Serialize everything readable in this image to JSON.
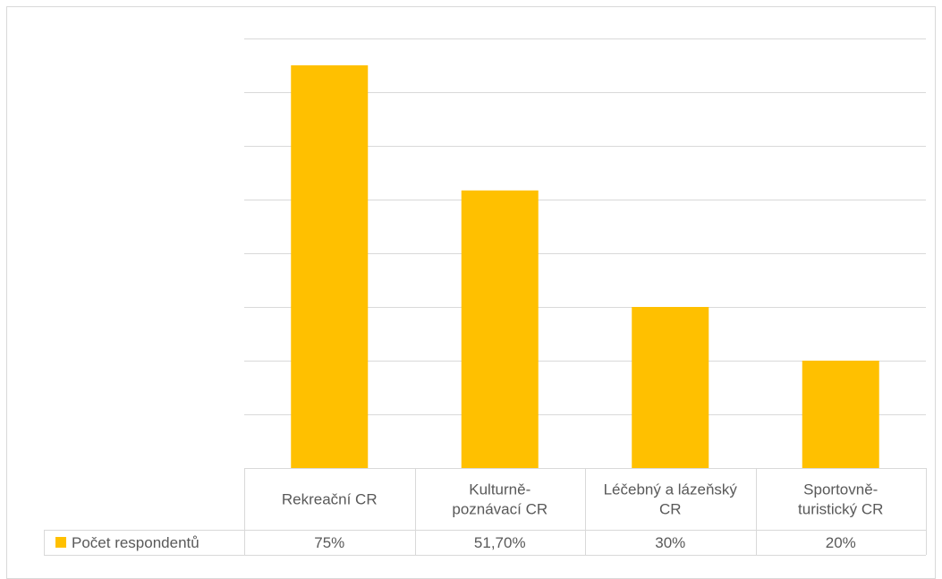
{
  "chart_data": {
    "type": "bar",
    "categories": [
      [
        "Rekreační CR"
      ],
      [
        "Kulturně-",
        "poznávací CR"
      ],
      [
        "Léčebný a lázeňský",
        "CR"
      ],
      [
        "Sportovně-",
        "turistický CR"
      ]
    ],
    "series": [
      {
        "name": "Počet respondentů",
        "values": [
          75,
          51.7,
          30,
          20
        ],
        "color": "#ffc000"
      }
    ],
    "data_table_values": [
      "75%",
      "51,70%",
      "30%",
      "20%"
    ],
    "ylim": [
      0,
      80
    ],
    "y_major_step": 10,
    "grid": true,
    "legend": "data-table-left"
  }
}
